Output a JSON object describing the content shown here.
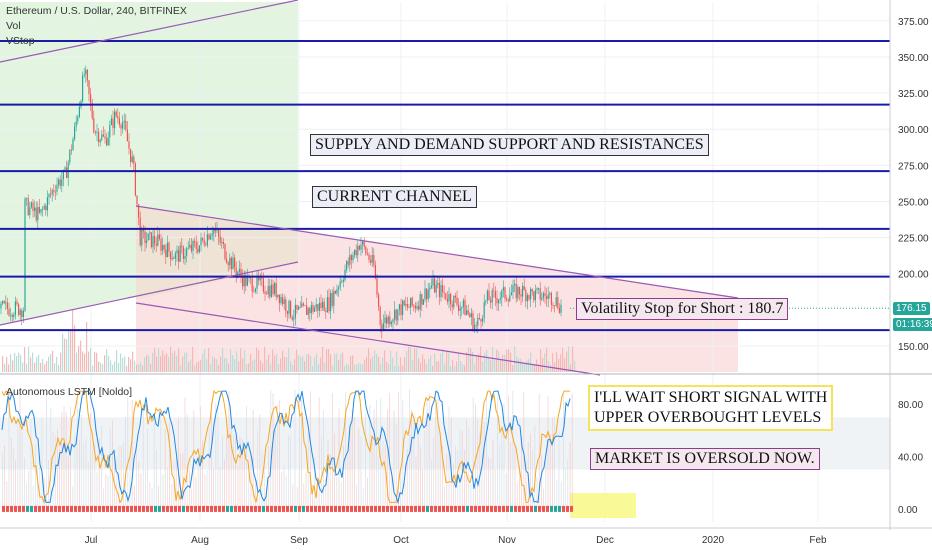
{
  "header": {
    "symbol": "Ethereum / U.S. Dollar, 240, BITFINEX",
    "vol": "Vol",
    "vstop": "VStop",
    "indicator": "Autonomous LSTM [Noldo]"
  },
  "annotations": {
    "supply_demand": "SUPPLY AND DEMAND SUPPORT AND RESISTANCES",
    "channel": "CURRENT CHANNEL",
    "volatility_stop": "Volatility Stop for Short : 180.7",
    "wait_short_1": "I'LL WAIT SHORT SIGNAL WITH",
    "wait_short_2": "UPPER OVERBOUGHT LEVELS",
    "oversold": "MARKET IS OVERSOLD NOW."
  },
  "price_tags": {
    "last": "176.15",
    "countdown": "01:16:39"
  },
  "colors": {
    "hline": "#1a1aa8",
    "channel": "#9b59b6",
    "up_candle": "#26a69a",
    "down_candle": "#ef5350",
    "green_zone": "#e3f5e1",
    "red_zone": "#fbe3e3",
    "lstm_blue": "#1e88e5",
    "lstm_orange": "#f5a623"
  },
  "chart_data": [
    {
      "type": "candlestick",
      "title": "Ethereum / U.S. Dollar, 240, BITFINEX",
      "x_ticks": [
        "Jul",
        "Aug",
        "Sep",
        "Oct",
        "Nov",
        "Dec",
        "2020",
        "Feb"
      ],
      "y_ticks": [
        "375.00",
        "350.00",
        "325.00",
        "300.00",
        "275.00",
        "250.00",
        "225.00",
        "200.00",
        "150.00"
      ],
      "ylim": [
        132,
        388
      ],
      "horizontal_levels": [
        361,
        317,
        271,
        231,
        198,
        161
      ],
      "volatility_stop": 180.7,
      "last_price": 176.15,
      "approx_daily_close": [
        [
          "Jun 10",
          248
        ],
        [
          "Jun 15",
          240
        ],
        [
          "Jun 20",
          262
        ],
        [
          "Jun 23",
          268
        ],
        [
          "Jun 26",
          300
        ],
        [
          "Jun 29",
          340
        ],
        [
          "Jul 2",
          300
        ],
        [
          "Jul 5",
          292
        ],
        [
          "Jul 8",
          310
        ],
        [
          "Jul 10",
          305
        ],
        [
          "Jul 13",
          275
        ],
        [
          "Jul 15",
          225
        ],
        [
          "Jul 20",
          222
        ],
        [
          "Jul 25",
          212
        ],
        [
          "Aug 1",
          220
        ],
        [
          "Aug 5",
          232
        ],
        [
          "Aug 10",
          210
        ],
        [
          "Aug 15",
          195
        ],
        [
          "Aug 20",
          192
        ],
        [
          "Aug 25",
          188
        ],
        [
          "Aug 30",
          172
        ],
        [
          "Sep 5",
          176
        ],
        [
          "Sep 10",
          180
        ],
        [
          "Sep 15",
          205
        ],
        [
          "Sep 19",
          222
        ],
        [
          "Sep 23",
          205
        ],
        [
          "Sep 25",
          165
        ],
        [
          "Oct 1",
          176
        ],
        [
          "Oct 5",
          178
        ],
        [
          "Oct 10",
          192
        ],
        [
          "Oct 15",
          184
        ],
        [
          "Oct 20",
          175
        ],
        [
          "Oct 23",
          163
        ],
        [
          "Oct 26",
          182
        ],
        [
          "Nov 1",
          186
        ],
        [
          "Nov 5",
          188
        ],
        [
          "Nov 10",
          185
        ],
        [
          "Nov 15",
          184
        ],
        [
          "Nov 18",
          176
        ]
      ]
    },
    {
      "type": "line",
      "title": "Autonomous LSTM [Noldo]",
      "y_ticks": [
        "80.00",
        "40.00",
        "0.00"
      ],
      "ylim": [
        -10,
        100
      ],
      "overbought": 70,
      "oversold": 30
    }
  ]
}
